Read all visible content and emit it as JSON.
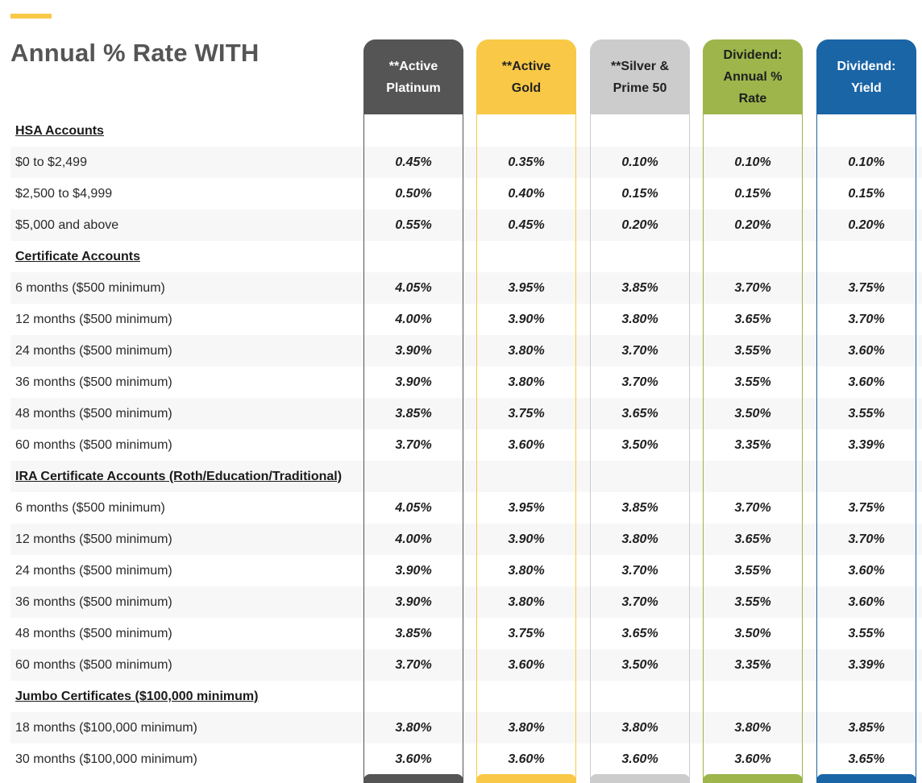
{
  "page": {
    "title": "Annual % Rate WITH",
    "accent_color": "#f9c846"
  },
  "columns": [
    {
      "label": "**Active\nPlatinum",
      "bg": "#555555",
      "text_color": "#ffffff"
    },
    {
      "label": "**Active\nGold",
      "bg": "#f9c846",
      "text_color": "#222222"
    },
    {
      "label": "**Silver &\nPrime 50",
      "bg": "#cccccc",
      "text_color": "#222222"
    },
    {
      "label": "Dividend:\nAnnual %\nRate",
      "bg": "#9db54b",
      "text_color": "#1f1f1f"
    },
    {
      "label": "Dividend:\nYield",
      "bg": "#1a65a6",
      "text_color": "#ffffff"
    }
  ],
  "rows": [
    {
      "type": "section",
      "label": "HSA Accounts",
      "values": []
    },
    {
      "type": "data",
      "label": "$0 to $2,499",
      "values": [
        "0.45%",
        "0.35%",
        "0.10%",
        "0.10%",
        "0.10%"
      ]
    },
    {
      "type": "data",
      "label": "$2,500 to $4,999",
      "values": [
        "0.50%",
        "0.40%",
        "0.15%",
        "0.15%",
        "0.15%"
      ]
    },
    {
      "type": "data",
      "label": "$5,000 and above",
      "values": [
        "0.55%",
        "0.45%",
        "0.20%",
        "0.20%",
        "0.20%"
      ]
    },
    {
      "type": "section",
      "label": "Certificate Accounts",
      "values": []
    },
    {
      "type": "data",
      "label": "6 months ($500 minimum)",
      "values": [
        "4.05%",
        "3.95%",
        "3.85%",
        "3.70%",
        "3.75%"
      ]
    },
    {
      "type": "data",
      "label": "12 months ($500 minimum)",
      "values": [
        "4.00%",
        "3.90%",
        "3.80%",
        "3.65%",
        "3.70%"
      ]
    },
    {
      "type": "data",
      "label": "24 months ($500 minimum)",
      "values": [
        "3.90%",
        "3.80%",
        "3.70%",
        "3.55%",
        "3.60%"
      ]
    },
    {
      "type": "data",
      "label": "36 months ($500 minimum)",
      "values": [
        "3.90%",
        "3.80%",
        "3.70%",
        "3.55%",
        "3.60%"
      ]
    },
    {
      "type": "data",
      "label": "48 months ($500 minimum)",
      "values": [
        "3.85%",
        "3.75%",
        "3.65%",
        "3.50%",
        "3.55%"
      ]
    },
    {
      "type": "data",
      "label": "60 months ($500 minimum)",
      "values": [
        "3.70%",
        "3.60%",
        "3.50%",
        "3.35%",
        "3.39%"
      ]
    },
    {
      "type": "section",
      "label": "IRA Certificate Accounts (Roth/Education/Traditional)",
      "values": []
    },
    {
      "type": "data",
      "label": "6 months ($500 minimum)",
      "values": [
        "4.05%",
        "3.95%",
        "3.85%",
        "3.70%",
        "3.75%"
      ]
    },
    {
      "type": "data",
      "label": "12 months ($500 minimum)",
      "values": [
        "4.00%",
        "3.90%",
        "3.80%",
        "3.65%",
        "3.70%"
      ]
    },
    {
      "type": "data",
      "label": "24 months ($500 minimum)",
      "values": [
        "3.90%",
        "3.80%",
        "3.70%",
        "3.55%",
        "3.60%"
      ]
    },
    {
      "type": "data",
      "label": "36 months ($500 minimum)",
      "values": [
        "3.90%",
        "3.80%",
        "3.70%",
        "3.55%",
        "3.60%"
      ]
    },
    {
      "type": "data",
      "label": "48 months ($500 minimum)",
      "values": [
        "3.85%",
        "3.75%",
        "3.65%",
        "3.50%",
        "3.55%"
      ]
    },
    {
      "type": "data",
      "label": "60 months ($500 minimum)",
      "values": [
        "3.70%",
        "3.60%",
        "3.50%",
        "3.35%",
        "3.39%"
      ]
    },
    {
      "type": "section",
      "label": "Jumbo Certificates ($100,000 minimum)",
      "values": []
    },
    {
      "type": "data",
      "label": "18 months ($100,000 minimum)",
      "values": [
        "3.80%",
        "3.80%",
        "3.80%",
        "3.80%",
        "3.85%"
      ]
    },
    {
      "type": "data",
      "label": "30 months ($100,000 minimum)",
      "values": [
        "3.60%",
        "3.60%",
        "3.60%",
        "3.60%",
        "3.65%"
      ]
    }
  ]
}
